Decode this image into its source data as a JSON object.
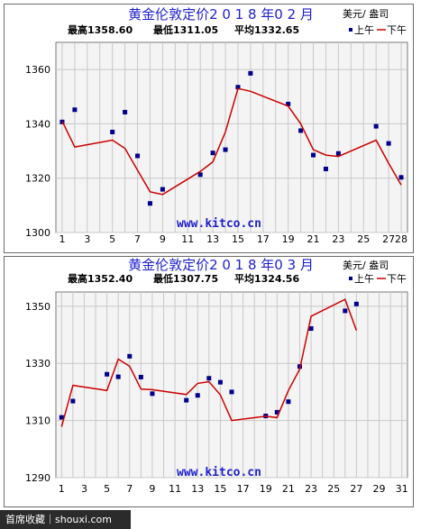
{
  "colors": {
    "title": "#1f1fcc",
    "line": "#cc0000",
    "point": "#00008b",
    "watermark": "#1f1fcc",
    "grid": "#c8c8c8",
    "plot_bg": "#f4f4f4"
  },
  "footer": {
    "text": "首席收藏｜shouxi.com"
  },
  "chart_data": [
    {
      "type": "line",
      "title": "黄金伦敦定价2 0 1 8 年0 2 月",
      "stats": {
        "high": "最高1358.60",
        "low": "最低1311.05",
        "avg": "平均1332.65"
      },
      "unit_label": "美元/ 盎司",
      "legend": {
        "am": "上午",
        "pm": "下午"
      },
      "watermark": "www.kitco.cn",
      "xlim": [
        0.5,
        28.5
      ],
      "ylim": [
        1300,
        1370
      ],
      "x_ticks": [
        "1",
        "3",
        "5",
        "7",
        "9",
        "11",
        "13",
        "15",
        "17",
        "19",
        "21",
        "23",
        "25",
        "27",
        "28"
      ],
      "y_ticks": [
        "1300",
        "1320",
        "1340",
        "1360"
      ],
      "grid": true,
      "series": [
        {
          "name": "上午",
          "style": "points",
          "x": [
            1,
            2,
            5,
            6,
            7,
            8,
            9,
            12,
            13,
            14,
            15,
            16,
            19,
            20,
            21,
            22,
            23,
            26,
            27,
            28
          ],
          "y": [
            1340.7,
            1345.2,
            1337.0,
            1344.3,
            1328.2,
            1310.7,
            1315.9,
            1321.3,
            1329.3,
            1330.5,
            1353.5,
            1358.6,
            1347.3,
            1337.5,
            1328.5,
            1323.4,
            1329.1,
            1339.1,
            1332.8,
            1320.3
          ]
        },
        {
          "name": "下午",
          "style": "line",
          "x": [
            1,
            2,
            5,
            6,
            7,
            8,
            9,
            12,
            13,
            14,
            15,
            16,
            19,
            20,
            21,
            22,
            23,
            26,
            27,
            28
          ],
          "y": [
            1341.0,
            1331.5,
            1334.0,
            1331.0,
            1323.0,
            1315.0,
            1314.0,
            1322.5,
            1326.0,
            1337.0,
            1353.0,
            1352.0,
            1346.5,
            1340.0,
            1330.5,
            1328.5,
            1328.0,
            1334.0,
            1325.5,
            1317.5
          ]
        }
      ]
    },
    {
      "type": "line",
      "title": "黄金伦敦定价2 0 1 8 年0 3 月",
      "stats": {
        "high": "最高1352.40",
        "low": "最低1307.75",
        "avg": "平均1324.56"
      },
      "unit_label": "美元/ 盎司",
      "legend": {
        "am": "上午",
        "pm": "下午"
      },
      "watermark": "www.kitco.cn",
      "xlim": [
        0.5,
        31.5
      ],
      "ylim": [
        1290,
        1355
      ],
      "x_ticks": [
        "1",
        "3",
        "5",
        "7",
        "9",
        "11",
        "13",
        "15",
        "17",
        "19",
        "21",
        "23",
        "25",
        "27",
        "29",
        "31"
      ],
      "y_ticks": [
        "1290",
        "1310",
        "1330",
        "1350"
      ],
      "grid": true,
      "series": [
        {
          "name": "上午",
          "style": "points",
          "x": [
            1,
            2,
            5,
            6,
            7,
            8,
            9,
            12,
            13,
            14,
            15,
            16,
            19,
            20,
            21,
            22,
            23,
            26,
            27
          ],
          "y": [
            1311.1,
            1316.8,
            1326.2,
            1325.3,
            1332.5,
            1325.2,
            1319.4,
            1317.1,
            1318.8,
            1324.8,
            1323.4,
            1320.0,
            1311.6,
            1312.9,
            1316.6,
            1328.9,
            1342.2,
            1348.4,
            1350.8
          ]
        },
        {
          "name": "下午",
          "style": "line",
          "x": [
            1,
            2,
            5,
            6,
            7,
            8,
            9,
            12,
            13,
            14,
            15,
            16,
            19,
            20,
            21,
            22,
            23,
            26,
            27
          ],
          "y": [
            1307.8,
            1322.3,
            1320.5,
            1331.5,
            1329.0,
            1321.0,
            1320.8,
            1319.1,
            1323.0,
            1323.6,
            1319.0,
            1310.0,
            1311.5,
            1311.0,
            1320.5,
            1328.0,
            1346.5,
            1352.4,
            1341.5
          ]
        }
      ]
    }
  ]
}
